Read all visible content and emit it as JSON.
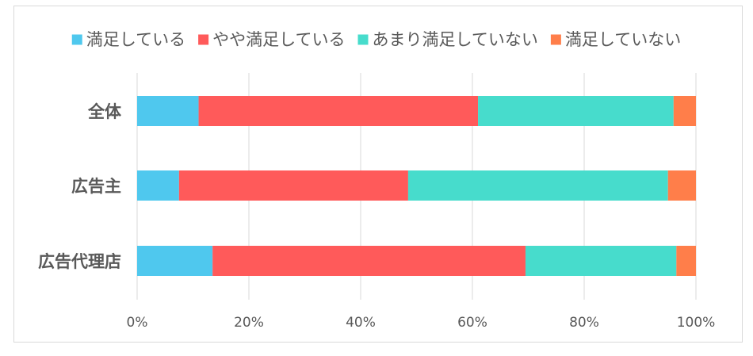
{
  "chart_data": {
    "type": "bar",
    "orientation": "horizontal",
    "stacked": true,
    "percent_stacked": true,
    "categories": [
      "全体",
      "広告主",
      "広告代理店"
    ],
    "series": [
      {
        "name": "満足している",
        "color": "#4FC8EE",
        "values": [
          11,
          7.5,
          13.5
        ]
      },
      {
        "name": "やや満足している",
        "color": "#FF5A5A",
        "values": [
          50,
          41,
          56
        ]
      },
      {
        "name": "あまり満足していない",
        "color": "#47DCCC",
        "values": [
          35,
          46.5,
          27
        ]
      },
      {
        "name": "満足していない",
        "color": "#FF7E4A",
        "values": [
          4,
          5,
          3.5
        ]
      }
    ],
    "xlim": [
      0,
      100
    ],
    "x_ticks": [
      0,
      20,
      40,
      60,
      80,
      100
    ],
    "x_tick_labels": [
      "0%",
      "20%",
      "40%",
      "60%",
      "80%",
      "100%"
    ],
    "grid": "vertical",
    "legend_position": "top"
  }
}
